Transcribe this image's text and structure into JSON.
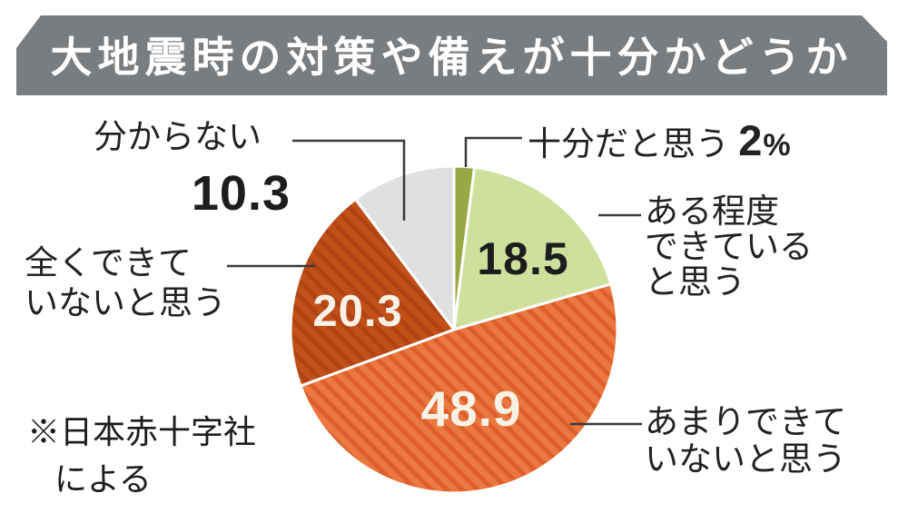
{
  "title": "大地震時の対策や備えが十分かどうか",
  "chart_data": {
    "type": "pie",
    "unit": "%",
    "start_angle_deg": 0,
    "direction": "clockwise",
    "center": [
      500,
      363
    ],
    "radius": 180,
    "source": "※日本赤十字社による",
    "slices": [
      {
        "label": "十分だと思う",
        "value": 2,
        "display_value": "2%",
        "color": "#9aa843"
      },
      {
        "label": "ある程度できていると思う",
        "value": 18.5,
        "display_value": "18.5",
        "color": "#cfe09d"
      },
      {
        "label": "あまりできていないと思う",
        "value": 48.9,
        "display_value": "48.9",
        "color": "#ea7840",
        "hatch_color": "#de5f29"
      },
      {
        "label": "全くできていないと思う",
        "value": 20.3,
        "display_value": "20.3",
        "color": "#c25019",
        "hatch_color": "#b04414"
      },
      {
        "label": "分からない",
        "value": 10.3,
        "display_value": "10.3",
        "color": "#dfe0e1"
      }
    ]
  },
  "callouts": {
    "somewhat": {
      "line1": "ある程度",
      "line2": "できている",
      "line3": "と思う"
    },
    "not_really": {
      "line1": "あまりできて",
      "line2": "いないと思う"
    },
    "not_at_all": {
      "line1": "全くできて",
      "line2": "いないと思う"
    }
  },
  "footnote": {
    "line1": "※日本赤十字社",
    "line2": "による"
  },
  "colors": {
    "banner_bg": "#7a7d80",
    "banner_text": "#ffffff",
    "leader_line": "#3a3a3a",
    "slice_separator": "#ffffff",
    "value_text_light": "#f8f1e5",
    "value_text_dark": "#1d1d1d"
  }
}
